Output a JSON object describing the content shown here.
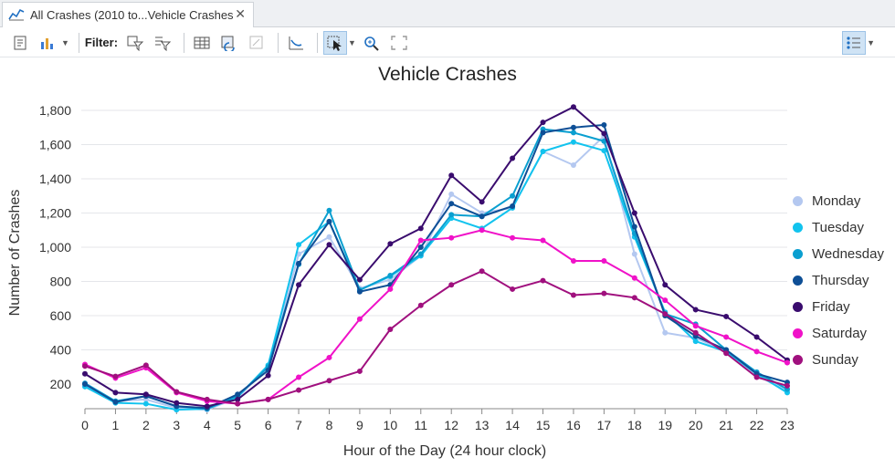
{
  "tab": {
    "title": "All Crashes (2010 to...Vehicle Crashes",
    "close_label": "✕",
    "icon": "line-chart-icon"
  },
  "toolbar": {
    "filter_label": "Filter:",
    "buttons": [
      "properties-icon",
      "chart-type-icon",
      "filter-extent-icon",
      "filter-selection-icon",
      "table-icon",
      "refresh-icon",
      "layout-icon",
      "trend-icon",
      "select-icon",
      "zoom-icon",
      "full-extent-icon",
      "legend-toggle-icon"
    ]
  },
  "chart_data": {
    "type": "line",
    "title": "Vehicle Crashes",
    "xlabel": "Hour of the Day (24 hour clock)",
    "ylabel": "Number of Crashes",
    "x": [
      0,
      1,
      2,
      3,
      4,
      5,
      6,
      7,
      8,
      9,
      10,
      11,
      12,
      13,
      14,
      15,
      16,
      17,
      18,
      19,
      20,
      21,
      22,
      23
    ],
    "xlim": [
      0,
      23
    ],
    "ylim": [
      100,
      1800
    ],
    "yticks": [
      200,
      400,
      600,
      800,
      1000,
      1200,
      1400,
      1600,
      1800
    ],
    "ytick_labels": [
      "200",
      "400",
      "600",
      "800",
      "1,000",
      "1,200",
      "1,400",
      "1,600",
      "1,800"
    ],
    "grid": true,
    "legend_position": "right",
    "series": [
      {
        "name": "Monday",
        "color": "#b4c8f0",
        "values": [
          190,
          100,
          110,
          60,
          50,
          120,
          300,
          960,
          1060,
          760,
          810,
          950,
          1310,
          1200,
          1230,
          1560,
          1480,
          1650,
          960,
          500,
          470,
          390,
          250,
          160
        ]
      },
      {
        "name": "Tuesday",
        "color": "#12c3ee",
        "values": [
          185,
          90,
          85,
          50,
          55,
          125,
          310,
          1015,
          1150,
          750,
          830,
          950,
          1170,
          1110,
          1230,
          1560,
          1615,
          1565,
          1060,
          620,
          450,
          390,
          260,
          150
        ]
      },
      {
        "name": "Wednesday",
        "color": "#0a9fd0",
        "values": [
          205,
          100,
          130,
          70,
          55,
          130,
          300,
          900,
          1215,
          750,
          835,
          960,
          1190,
          1180,
          1300,
          1690,
          1670,
          1620,
          1080,
          610,
          550,
          400,
          270,
          170
        ]
      },
      {
        "name": "Thursday",
        "color": "#0e4f96",
        "values": [
          200,
          95,
          130,
          70,
          60,
          140,
          280,
          905,
          1150,
          740,
          780,
          1000,
          1255,
          1180,
          1240,
          1670,
          1700,
          1715,
          1120,
          600,
          480,
          400,
          260,
          210
        ]
      },
      {
        "name": "Friday",
        "color": "#3a0c6e",
        "values": [
          260,
          150,
          140,
          90,
          70,
          110,
          250,
          780,
          1015,
          810,
          1020,
          1110,
          1420,
          1265,
          1520,
          1730,
          1820,
          1665,
          1200,
          780,
          635,
          595,
          475,
          340
        ]
      },
      {
        "name": "Saturday",
        "color": "#f012c8",
        "values": [
          315,
          235,
          295,
          150,
          100,
          85,
          110,
          240,
          355,
          580,
          755,
          1040,
          1055,
          1100,
          1055,
          1040,
          920,
          920,
          820,
          690,
          540,
          475,
          390,
          325
        ]
      },
      {
        "name": "Sunday",
        "color": "#a0107e",
        "values": [
          305,
          245,
          310,
          155,
          110,
          85,
          110,
          165,
          220,
          275,
          520,
          660,
          780,
          860,
          755,
          805,
          720,
          730,
          705,
          610,
          500,
          380,
          240,
          190
        ]
      }
    ]
  }
}
